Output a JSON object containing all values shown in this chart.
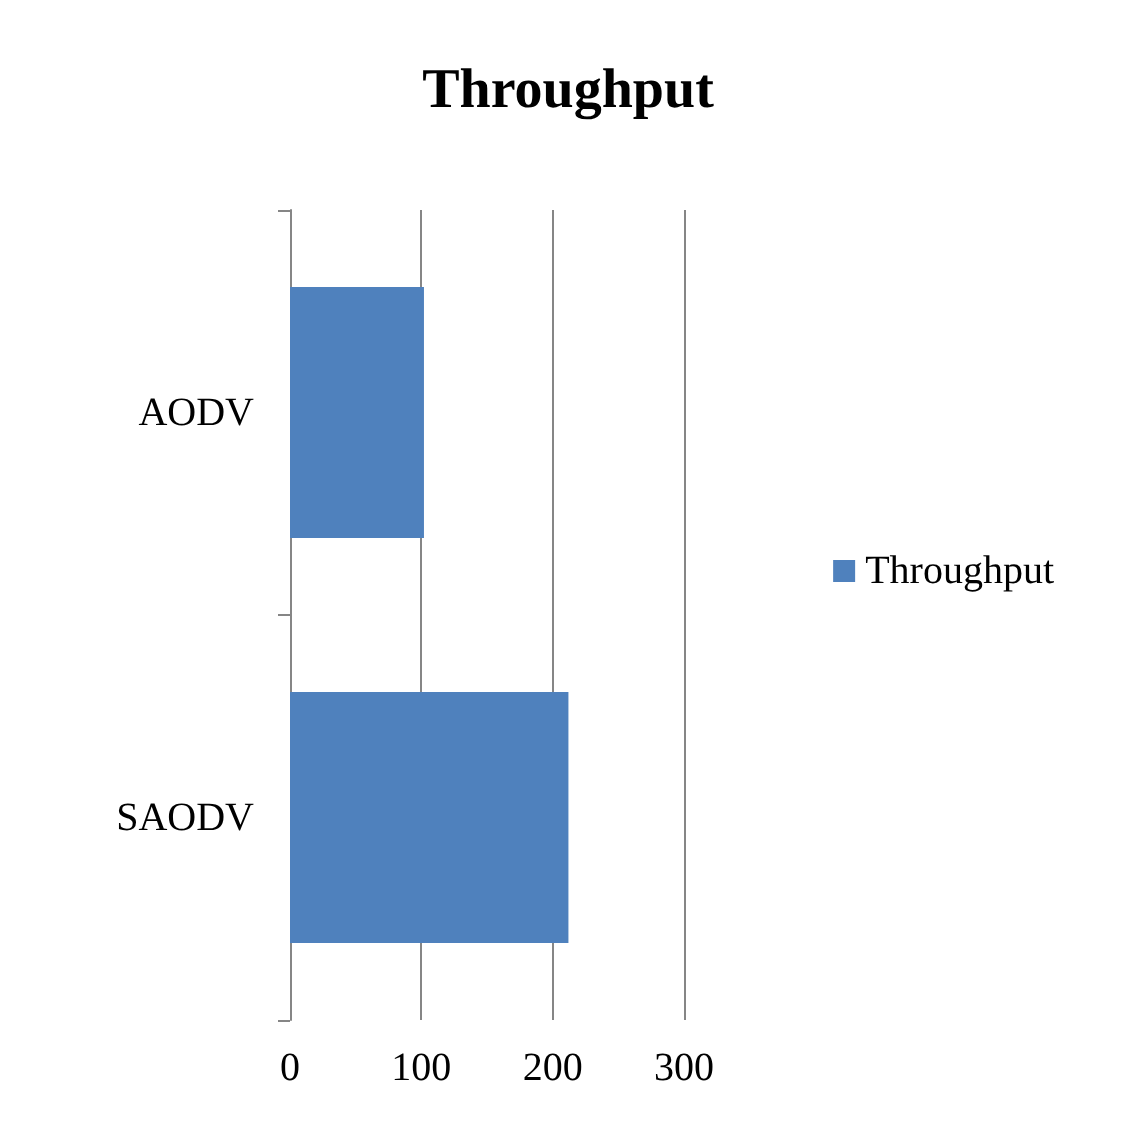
{
  "chart_data": {
    "type": "bar",
    "orientation": "horizontal",
    "title": "Throughput",
    "categories": [
      "AODV",
      "SAODV"
    ],
    "series": [
      {
        "name": "Throughput",
        "color": "#4f81bd",
        "values": [
          102,
          212
        ]
      }
    ],
    "xlim": [
      0,
      300
    ],
    "xticks": [
      0,
      100,
      200,
      300
    ],
    "grid": "x",
    "legend": "right"
  }
}
